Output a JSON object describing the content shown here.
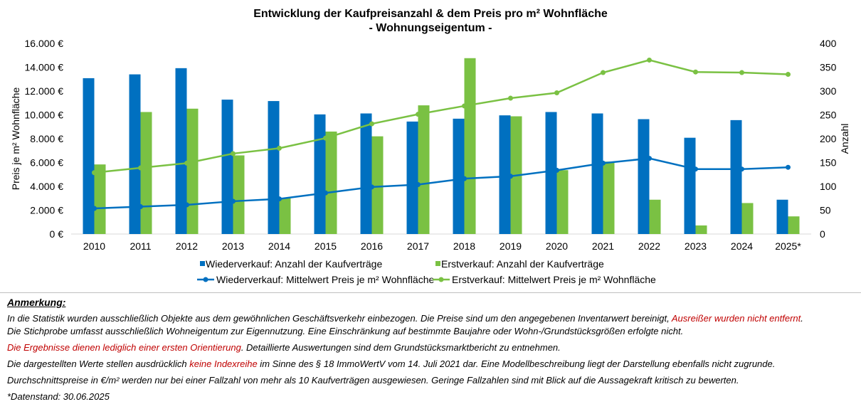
{
  "chart_data": {
    "type": "bar+line",
    "title": "Entwicklung der Kaufpreisanzahl & dem Preis pro m² Wohnfläche",
    "subtitle": "- Wohnungseigentum -",
    "categories": [
      "2010",
      "2011",
      "2012",
      "2013",
      "2014",
      "2015",
      "2016",
      "2017",
      "2018",
      "2019",
      "2020",
      "2021",
      "2022",
      "2023",
      "2024",
      "2025*"
    ],
    "y_left": {
      "label": "Preis je m² Wohnfläche",
      "ylim": [
        0,
        16000
      ],
      "ticks": [
        "0 €",
        "2.000 €",
        "4.000 €",
        "6.000 €",
        "8.000 €",
        "10.000 €",
        "12.000 €",
        "14.000 €",
        "16.000 €"
      ]
    },
    "y_right": {
      "label": "Anzahl",
      "ylim": [
        0,
        400
      ],
      "ticks": [
        "0",
        "50",
        "100",
        "150",
        "200",
        "250",
        "300",
        "350",
        "400"
      ]
    },
    "grid": false,
    "legend_position": "bottom",
    "series": [
      {
        "name": "Wiederverkauf: Anzahl der Kaufverträge",
        "type": "bar",
        "axis": "right",
        "color": "#0070c0",
        "values": [
          327,
          335,
          348,
          282,
          279,
          251,
          253,
          236,
          242,
          249,
          256,
          253,
          241,
          202,
          239,
          72
        ]
      },
      {
        "name": "Erstverkauf: Anzahl der Kaufverträge",
        "type": "bar",
        "axis": "right",
        "color": "#7ac143",
        "values": [
          146,
          256,
          263,
          165,
          75,
          215,
          205,
          270,
          369,
          247,
          134,
          152,
          72,
          18,
          65,
          37
        ]
      },
      {
        "name": "Wiederverkauf: Mittelwert Preis je m² Wohnfläche",
        "type": "line",
        "axis": "left",
        "color": "#0070c0",
        "values": [
          2150,
          2300,
          2450,
          2750,
          2950,
          3450,
          3950,
          4150,
          4650,
          4850,
          5350,
          5950,
          6350,
          5450,
          5450,
          5600
        ]
      },
      {
        "name": "Erstverkauf: Mittelwert Preis je m² Wohnfläche",
        "type": "line",
        "axis": "left",
        "color": "#7ac143",
        "values": [
          5150,
          5550,
          5950,
          6750,
          7200,
          8050,
          9250,
          10050,
          10750,
          11400,
          11850,
          13550,
          14600,
          13600,
          13550,
          13400
        ]
      }
    ]
  },
  "notes": {
    "heading": "Anmerkung:",
    "line1_a": "In die Statistik wurden ausschließlich Objekte aus dem gewöhnlichen Geschäftsverkehr einbezogen. Die Preise sind um den angegebenen Inventarwert bereinigt, ",
    "line1_b": "Ausreißer wurden nicht entfernt",
    "line1_c": ".",
    "line2": "Die Stichprobe umfasst ausschließlich Wohneigentum zur Eigennutzung. Eine Einschränkung auf bestimmte Baujahre oder Wohn-/Grundstücksgrößen erfolgte nicht.",
    "line3_a": "Die Ergebnisse dienen lediglich einer ersten Orientierung",
    "line3_b": ". Detaillierte Auswertungen sind dem Grundstücksmarktbericht zu entnehmen.",
    "line4_a": "Die dargestellten Werte stellen ausdrücklich ",
    "line4_b": "keine Indexreihe",
    "line4_c": " im Sinne des § 18 ImmoWertV vom 14. Juli 2021 dar. Eine Modellbeschreibung liegt der Darstellung ebenfalls nicht zugrunde.",
    "line5": "Durchschnittspreise in €/m² werden nur bei einer Fallzahl von mehr als 10 Kaufverträgen ausgewiesen. Geringe Fallzahlen sind mit Blick auf die Aussagekraft kritisch zu bewerten.",
    "line6": "*Datenstand: 30.06.2025"
  }
}
